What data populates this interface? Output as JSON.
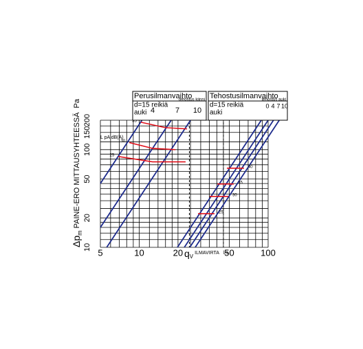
{
  "chart_data": {
    "type": "line",
    "xlog": true,
    "ylog": true,
    "xlim": [
      5,
      100
    ],
    "ylim": [
      10,
      200
    ],
    "xticks": [
      5,
      10,
      20,
      50,
      100
    ],
    "yticks": [
      10,
      20,
      50,
      100,
      150,
      200
    ],
    "xgrid": [
      6,
      7,
      8,
      9,
      12,
      14,
      16,
      18,
      25,
      30,
      35,
      40,
      45,
      60,
      70,
      80,
      90
    ],
    "ygrid": [
      12,
      14,
      16,
      18,
      25,
      30,
      35,
      40,
      45,
      60,
      70,
      80,
      90,
      120,
      175
    ],
    "reference_lines": [
      24.5,
      45
    ],
    "x_symbol": "q",
    "x_symbol_sub": "V",
    "x_label": "ILMAVIRTA",
    "x_unit": "l/s",
    "y_symbol": "Δp",
    "y_symbol_sub": "m",
    "y_label": "PAINE-ERO MITTAUSYHTEESSÄ",
    "y_unit": "Pa",
    "groups": [
      {
        "title": "Perusilmanvaihto",
        "hole": "d=15 reikiä",
        "open": "auki",
        "boost": "tehostus kiinni"
      },
      {
        "title": "Tehostusilmanvaihto",
        "hole": "d=15 reikiä",
        "open": "auki",
        "boost": "tehostus auki"
      }
    ],
    "series": [
      {
        "name": "4",
        "group": 0,
        "color": "#1c2a8c",
        "x": [
          5,
          10.5
        ],
        "values": [
          45,
          200
        ]
      },
      {
        "name": "7",
        "group": 0,
        "color": "#1c2a8c",
        "x": [
          5,
          17.7
        ],
        "values": [
          16,
          200
        ]
      },
      {
        "name": "10",
        "group": 0,
        "color": "#1c2a8c",
        "x": [
          5.6,
          25
        ],
        "values": [
          10,
          200
        ]
      },
      {
        "name": "0",
        "group": 1,
        "color": "#1c2a8c",
        "x": [
          19.8,
          88.5
        ],
        "values": [
          10,
          200
        ]
      },
      {
        "name": "4",
        "group": 1,
        "color": "#1c2a8c",
        "x": [
          22.4,
          100
        ],
        "values": [
          10,
          200
        ]
      },
      {
        "name": "7",
        "group": 1,
        "color": "#1c2a8c",
        "x": [
          24.7,
          110
        ],
        "values": [
          10,
          200
        ]
      },
      {
        "name": "10",
        "group": 1,
        "color": "#1c2a8c",
        "x": [
          27.2,
          122
        ],
        "values": [
          10,
          200
        ]
      }
    ],
    "sound_label": "L pA dB(A)",
    "sound_curves": [
      {
        "label": "35",
        "color": "#e0101a",
        "x": [
          10.3,
          15.9,
          23.5
        ],
        "values": [
          191,
          168,
          163
        ]
      },
      {
        "label": "30",
        "color": "#e0101a",
        "x": [
          8.4,
          12.7,
          19.1
        ],
        "values": [
          118,
          103,
          100
        ]
      },
      {
        "label": "25",
        "color": "#e0101a",
        "x": [
          6.9,
          12.7,
          22.9
        ],
        "values": [
          85,
          75,
          75
        ]
      },
      {
        "label": "40",
        "color": "#e0101a",
        "x": [
          47.9,
          65
        ],
        "values": [
          64.6,
          64.6
        ]
      },
      {
        "label": "35",
        "color": "#e0101a",
        "x": [
          40.4,
          54.2
        ],
        "values": [
          44.5,
          44.5
        ]
      },
      {
        "label": "30",
        "color": "#e0101a",
        "x": [
          35.2,
          49.1
        ],
        "values": [
          33.2,
          33.2
        ]
      },
      {
        "label": "25",
        "color": "#e0101a",
        "x": [
          28.6,
          38.4
        ],
        "values": [
          22.1,
          22.1
        ]
      }
    ]
  }
}
